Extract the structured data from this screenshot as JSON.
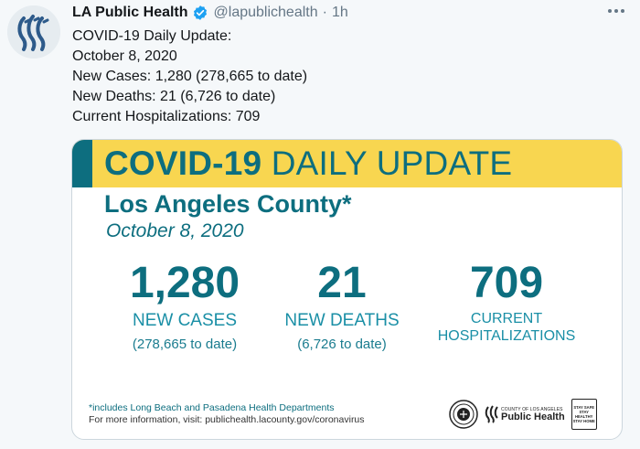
{
  "tweet": {
    "author_name": "LA Public Health",
    "handle": "@lapublichealth",
    "separator": "·",
    "time": "1h",
    "lines": [
      "COVID-19 Daily Update:",
      "October 8, 2020",
      "New Cases: 1,280 (278,665 to date)",
      "New Deaths: 21 (6,726 to date)",
      "Current Hospitalizations: 709"
    ]
  },
  "card": {
    "title_bold": "COVID-19",
    "title_rest": "DAILY UPDATE",
    "county": "Los Angeles County*",
    "date": "October 8, 2020",
    "stats": [
      {
        "number": "1,280",
        "label": "NEW CASES",
        "sub": "(278,665 to date)"
      },
      {
        "number": "21",
        "label": "NEW DEATHS",
        "sub": "(6,726 to date)"
      },
      {
        "number": "709",
        "label_line1": "CURRENT",
        "label_line2": "HOSPITALIZATIONS"
      }
    ],
    "footnote": "*includes Long Beach and Pasadena Health Departments",
    "info": "For more information, visit: publichealth.lacounty.gov/coronavirus",
    "logo_small_1": "COUNTY OF LOS ANGELES",
    "logo_big": "Public Health",
    "badge_lines": [
      "STAY SAFE",
      "STAY HEALTHY",
      "STAY HOME"
    ]
  },
  "colors": {
    "teal": "#0d6e7f",
    "banner_yellow": "#f8d650",
    "verified_blue": "#1da1f2",
    "muted_text": "#657786"
  },
  "icons": {
    "verified": "verified-badge-icon",
    "more": "more-options-icon"
  }
}
